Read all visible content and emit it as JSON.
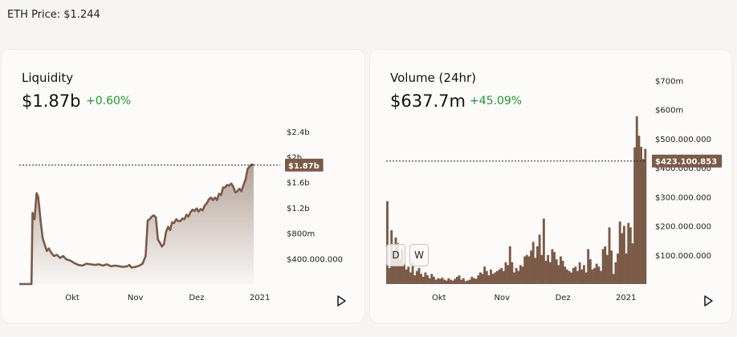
{
  "header": {
    "eth_price": "ETH Price: $1.244"
  },
  "colors": {
    "brown": "#7b5a48",
    "green": "#1d9a2e",
    "text": "#1a1a1a"
  },
  "liquidity": {
    "title": "Liquidity",
    "value": "$1.87b",
    "change": "+0.60%",
    "current_tag": "$1.87b",
    "play_icon": "play-icon"
  },
  "volume": {
    "title": "Volume (24hr)",
    "value": "$637.7m",
    "change": "+45.09%",
    "current_tag": "$423.100.853",
    "toggle_d": "D",
    "toggle_w": "W",
    "play_icon": "play-icon"
  },
  "chart_data": [
    {
      "type": "area",
      "ylim": [
        0,
        2600000000
      ],
      "yticks": [
        {
          "value": 400000000,
          "label": "$400.000.000"
        },
        {
          "value": 800000000,
          "label": "$800m"
        },
        {
          "value": 1200000000,
          "label": "$1.2b"
        },
        {
          "value": 1600000000,
          "label": "$1.6b"
        },
        {
          "value": 2000000000,
          "label": "$2b"
        },
        {
          "value": 2400000000,
          "label": "$2.4b"
        }
      ],
      "xticks": [
        {
          "day": 20,
          "label": "Okt"
        },
        {
          "day": 51,
          "label": "Nov"
        },
        {
          "day": 81,
          "label": "Dez"
        },
        {
          "day": 112,
          "label": "2021"
        }
      ],
      "xlim": [
        -6,
        122
      ],
      "current_value": 1870000000,
      "points": [
        [
          -6,
          0
        ],
        [
          0,
          0
        ],
        [
          0.5,
          1120000000
        ],
        [
          1.5,
          1020000000
        ],
        [
          2.5,
          1430000000
        ],
        [
          3.3,
          1370000000
        ],
        [
          4.5,
          980000000
        ],
        [
          5.5,
          720000000
        ],
        [
          6.5,
          620000000
        ],
        [
          7.5,
          520000000
        ],
        [
          8.5,
          560000000
        ],
        [
          9.5,
          500000000
        ],
        [
          11,
          440000000
        ],
        [
          12.5,
          460000000
        ],
        [
          14,
          410000000
        ],
        [
          15.5,
          440000000
        ],
        [
          17,
          390000000
        ],
        [
          19,
          370000000
        ],
        [
          21,
          330000000
        ],
        [
          23,
          300000000
        ],
        [
          25,
          290000000
        ],
        [
          27,
          320000000
        ],
        [
          29,
          310000000
        ],
        [
          31,
          300000000
        ],
        [
          33,
          310000000
        ],
        [
          35,
          290000000
        ],
        [
          37,
          310000000
        ],
        [
          39,
          280000000
        ],
        [
          41,
          290000000
        ],
        [
          43,
          280000000
        ],
        [
          45,
          270000000
        ],
        [
          47,
          280000000
        ],
        [
          48,
          300000000
        ],
        [
          49,
          260000000
        ],
        [
          51,
          270000000
        ],
        [
          53,
          290000000
        ],
        [
          54.5,
          320000000
        ],
        [
          56,
          440000000
        ],
        [
          57,
          1000000000
        ],
        [
          58,
          1020000000
        ],
        [
          59,
          1060000000
        ],
        [
          60,
          1080000000
        ],
        [
          61,
          1050000000
        ],
        [
          62,
          700000000
        ],
        [
          63,
          650000000
        ],
        [
          64,
          590000000
        ],
        [
          65,
          630000000
        ],
        [
          66,
          820000000
        ],
        [
          67,
          900000000
        ],
        [
          68,
          850000000
        ],
        [
          69,
          970000000
        ],
        [
          70,
          960000000
        ],
        [
          71,
          1020000000
        ],
        [
          72,
          990000000
        ],
        [
          73,
          990000000
        ],
        [
          74,
          1030000000
        ],
        [
          75,
          1020000000
        ],
        [
          76,
          1090000000
        ],
        [
          77,
          1060000000
        ],
        [
          78,
          1130000000
        ],
        [
          79,
          1170000000
        ],
        [
          80,
          1150000000
        ],
        [
          81,
          1190000000
        ],
        [
          82,
          1140000000
        ],
        [
          83,
          1180000000
        ],
        [
          84,
          1160000000
        ],
        [
          85,
          1240000000
        ],
        [
          86,
          1270000000
        ],
        [
          87,
          1330000000
        ],
        [
          88,
          1360000000
        ],
        [
          89,
          1320000000
        ],
        [
          90,
          1360000000
        ],
        [
          91,
          1320000000
        ],
        [
          92,
          1420000000
        ],
        [
          93,
          1400000000
        ],
        [
          94,
          1520000000
        ],
        [
          95,
          1520000000
        ],
        [
          96,
          1560000000
        ],
        [
          97,
          1550000000
        ],
        [
          98,
          1580000000
        ],
        [
          99,
          1530000000
        ],
        [
          100,
          1440000000
        ],
        [
          101,
          1460000000
        ],
        [
          102,
          1500000000
        ],
        [
          103,
          1460000000
        ],
        [
          104,
          1560000000
        ],
        [
          105,
          1640000000
        ],
        [
          106,
          1810000000
        ],
        [
          107,
          1850000000
        ],
        [
          108,
          1880000000
        ],
        [
          109,
          1870000000
        ]
      ]
    },
    {
      "type": "bar",
      "ylim": [
        0,
        745000000
      ],
      "yticks": [
        {
          "value": 100000000,
          "label": "$100.000.000"
        },
        {
          "value": 200000000,
          "label": "$200.000.000"
        },
        {
          "value": 300000000,
          "label": "$300.000.000"
        },
        {
          "value": 400000000,
          "label": "$400.000.000"
        },
        {
          "value": 500000000,
          "label": "$500.000.000"
        },
        {
          "value": 600000000,
          "label": "$600m"
        },
        {
          "value": 700000000,
          "label": "$700m"
        }
      ],
      "xticks": [
        {
          "day": 20,
          "label": "Okt"
        },
        {
          "day": 51,
          "label": "Nov"
        },
        {
          "day": 81,
          "label": "Dez"
        },
        {
          "day": 112,
          "label": "2021"
        }
      ],
      "xlim": [
        -6,
        122
      ],
      "current_value": 423100853,
      "values": [
        285000000,
        55000000,
        185000000,
        115000000,
        160000000,
        140000000,
        85000000,
        120000000,
        70000000,
        50000000,
        60000000,
        40000000,
        75000000,
        30000000,
        45000000,
        55000000,
        35000000,
        25000000,
        40000000,
        30000000,
        20000000,
        35000000,
        25000000,
        15000000,
        20000000,
        18000000,
        22000000,
        15000000,
        12000000,
        20000000,
        15000000,
        12000000,
        18000000,
        25000000,
        30000000,
        15000000,
        20000000,
        10000000,
        12000000,
        15000000,
        25000000,
        20000000,
        18000000,
        30000000,
        40000000,
        35000000,
        60000000,
        45000000,
        30000000,
        50000000,
        35000000,
        40000000,
        45000000,
        50000000,
        55000000,
        45000000,
        75000000,
        65000000,
        130000000,
        75000000,
        40000000,
        55000000,
        45000000,
        65000000,
        60000000,
        95000000,
        100000000,
        95000000,
        115000000,
        145000000,
        90000000,
        130000000,
        170000000,
        100000000,
        225000000,
        80000000,
        100000000,
        75000000,
        120000000,
        110000000,
        85000000,
        65000000,
        95000000,
        80000000,
        60000000,
        50000000,
        45000000,
        40000000,
        55000000,
        60000000,
        45000000,
        75000000,
        50000000,
        65000000,
        40000000,
        120000000,
        85000000,
        50000000,
        55000000,
        70000000,
        60000000,
        45000000,
        120000000,
        130000000,
        100000000,
        195000000,
        115000000,
        35000000,
        75000000,
        105000000,
        215000000,
        175000000,
        200000000,
        105000000,
        210000000,
        195000000,
        140000000,
        470000000,
        577000000,
        510000000,
        472000000,
        430000000,
        465000000
      ]
    }
  ]
}
